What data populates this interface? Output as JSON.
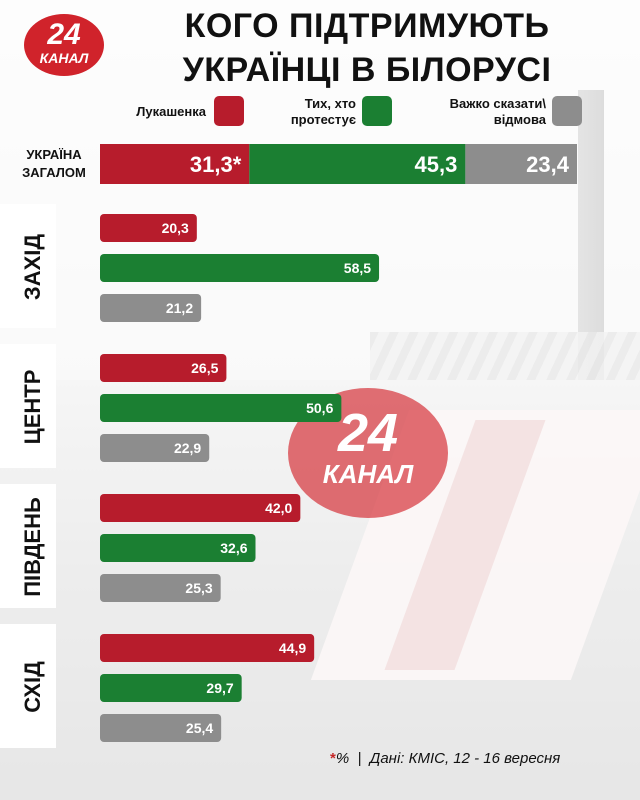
{
  "title": {
    "line1": "КОГО ПІДТРИМУЮТЬ",
    "line2": "УКРАЇНЦІ В БІЛОРУСІ"
  },
  "logo": {
    "number": "24",
    "text": "КАНАЛ"
  },
  "watermark": {
    "number": "24",
    "text": "КАНАЛ"
  },
  "colors": {
    "lukashenko": "#b71c2c",
    "protesters": "#1b7f32",
    "undecided": "#8d8d8d"
  },
  "footer": {
    "star": "*",
    "unit": "%",
    "separator": "|",
    "source": "Дані: КМІС, 12 - 16 вересня"
  },
  "chart_data": {
    "type": "bar",
    "title": "КОГО ПІДТРИМУЮТЬ УКРАЇНЦІ В БІЛОРУСІ",
    "unit": "%",
    "legend": [
      {
        "key": "lukashenko",
        "line1": "Лукашенка",
        "line2": ""
      },
      {
        "key": "protesters",
        "line1": "Тих, хто",
        "line2": "протестує"
      },
      {
        "key": "undecided",
        "line1": "Важко сказати\\",
        "line2": "відмова"
      }
    ],
    "total": {
      "label_line1": "УКРАЇНА",
      "label_line2": "ЗАГАЛОМ",
      "values": [
        {
          "key": "lukashenko",
          "value": 31.3,
          "label": "31,3*"
        },
        {
          "key": "protesters",
          "value": 45.3,
          "label": "45,3"
        },
        {
          "key": "undecided",
          "value": 23.4,
          "label": "23,4"
        }
      ]
    },
    "regions": [
      {
        "name": "ЗАХІД",
        "values": [
          {
            "key": "lukashenko",
            "value": 20.3,
            "label": "20,3"
          },
          {
            "key": "protesters",
            "value": 58.5,
            "label": "58,5"
          },
          {
            "key": "undecided",
            "value": 21.2,
            "label": "21,2"
          }
        ]
      },
      {
        "name": "ЦЕНТР",
        "values": [
          {
            "key": "lukashenko",
            "value": 26.5,
            "label": "26,5"
          },
          {
            "key": "protesters",
            "value": 50.6,
            "label": "50,6"
          },
          {
            "key": "undecided",
            "value": 22.9,
            "label": "22,9"
          }
        ]
      },
      {
        "name": "ПІВДЕНЬ",
        "values": [
          {
            "key": "lukashenko",
            "value": 42.0,
            "label": "42,0"
          },
          {
            "key": "protesters",
            "value": 32.6,
            "label": "32,6"
          },
          {
            "key": "undecided",
            "value": 25.3,
            "label": "25,3"
          }
        ]
      },
      {
        "name": "СХІД",
        "values": [
          {
            "key": "lukashenko",
            "value": 44.9,
            "label": "44,9"
          },
          {
            "key": "protesters",
            "value": 29.7,
            "label": "29,7"
          },
          {
            "key": "undecided",
            "value": 25.4,
            "label": "25,4"
          }
        ]
      }
    ]
  }
}
